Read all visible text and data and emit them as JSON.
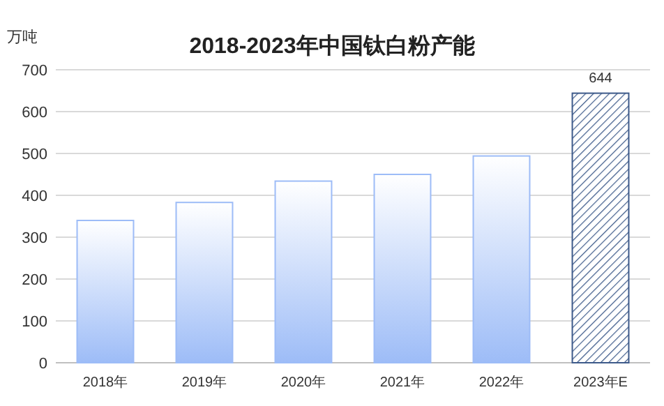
{
  "chart_data": {
    "type": "bar",
    "title": "2018-2023年中国钛白粉产能",
    "ylabel": "万吨",
    "categories": [
      "2018年",
      "2019年",
      "2020年",
      "2021年",
      "2022年",
      "2023年E"
    ],
    "values": [
      340,
      383,
      434,
      450,
      494,
      644
    ],
    "value_labels": [
      null,
      null,
      null,
      null,
      null,
      "644"
    ],
    "colors": [
      "#9dbcf7",
      "#9dbcf7",
      "#9dbcf7",
      "#9dbcf7",
      "#9dbcf7",
      "#3d5a8a"
    ],
    "ylim": [
      0,
      700
    ],
    "yticks": [
      0,
      100,
      200,
      300,
      400,
      500,
      600,
      700
    ],
    "grid": "y"
  }
}
